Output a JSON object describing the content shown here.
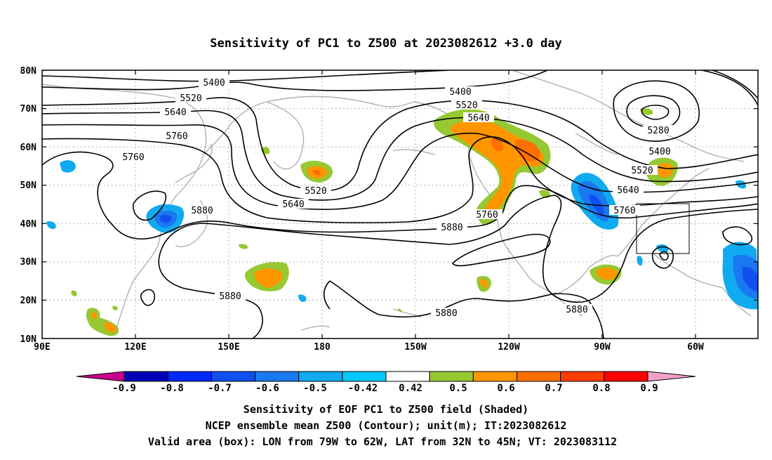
{
  "title": "Sensitivity of PC1 to Z500 at 2023082612 +3.0 day",
  "lat_labels": [
    "80N",
    "70N",
    "60N",
    "50N",
    "40N",
    "30N",
    "20N",
    "10N"
  ],
  "lon_labels": [
    "90E",
    "120E",
    "150E",
    "180",
    "150W",
    "120W",
    "90W",
    "60W"
  ],
  "contour_labels": [
    "5400",
    "5520",
    "5640",
    "5760",
    "5760",
    "5880",
    "5400",
    "5520",
    "5640",
    "5520",
    "5640",
    "5760",
    "5880",
    "5280",
    "5400",
    "5520",
    "5640",
    "5760",
    "5880",
    "5880",
    "5880"
  ],
  "colorbar": {
    "ticks": [
      "-0.9",
      "-0.8",
      "-0.7",
      "-0.6",
      "-0.5",
      "-0.42",
      "0.42",
      "0.5",
      "0.6",
      "0.7",
      "0.8",
      "0.9"
    ],
    "colors": [
      "#c8008c",
      "#0000b4",
      "#0028ff",
      "#1050f0",
      "#1a78f0",
      "#10aaf0",
      "#00c8ff",
      "#ffffff",
      "#96c832",
      "#ff9600",
      "#ff6e00",
      "#ff3c00",
      "#ff0000",
      "#f0a0c8"
    ]
  },
  "captions": [
    "Sensitivity of EOF PC1 to Z500 field (Shaded)",
    "NCEP ensemble mean Z500 (Contour); unit(m); IT:2023082612",
    "Valid area (box): LON from 79W to 62W, LAT from 32N to 45N; VT: 2023083112"
  ]
}
